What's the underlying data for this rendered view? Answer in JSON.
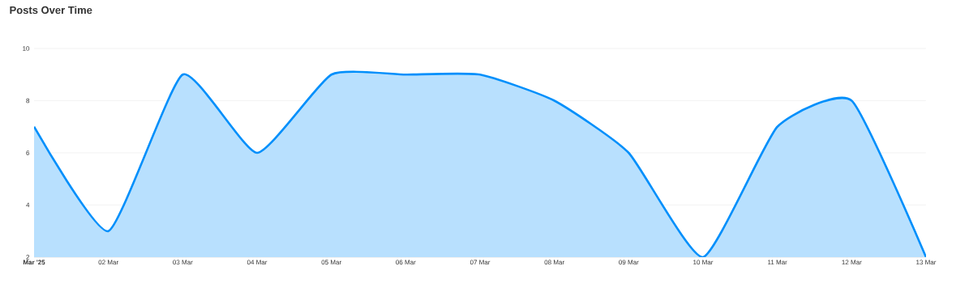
{
  "chart_data": {
    "type": "area",
    "title": "Posts Over Time",
    "x": [
      "2025-03-01",
      "2025-03-02",
      "2025-03-03",
      "2025-03-04",
      "2025-03-05",
      "2025-03-06",
      "2025-03-07",
      "2025-03-08",
      "2025-03-09",
      "2025-03-10",
      "2025-03-11",
      "2025-03-12",
      "2025-03-13"
    ],
    "series": [
      {
        "color": "#008ffb",
        "values": [
          7,
          3,
          9,
          6,
          9,
          9,
          9,
          8,
          6,
          2,
          7,
          8,
          2
        ]
      }
    ],
    "xlim": [
      "2025-03-01",
      "2025-03-13"
    ],
    "xticks": [
      {
        "value": "2025-03-01",
        "label": "**Mar '25**"
      },
      {
        "value": "2025-03-02",
        "label": "02 Mar"
      },
      {
        "value": "2025-03-03",
        "label": "03 Mar"
      },
      {
        "value": "2025-03-04",
        "label": "04 Mar"
      },
      {
        "value": "2025-03-05",
        "label": "05 Mar"
      },
      {
        "value": "2025-03-06",
        "label": "06 Mar"
      },
      {
        "value": "2025-03-07",
        "label": "07 Mar"
      },
      {
        "value": "2025-03-08",
        "label": "08 Mar"
      },
      {
        "value": "2025-03-09",
        "label": "09 Mar"
      },
      {
        "value": "2025-03-10",
        "label": "10 Mar"
      },
      {
        "value": "2025-03-11",
        "label": "11 Mar"
      },
      {
        "value": "2025-03-12",
        "label": "12 Mar"
      },
      {
        "value": "2025-03-13",
        "label": "13 Mar"
      }
    ],
    "ylim": [
      2,
      10
    ],
    "yticks": [
      2,
      4,
      6,
      8,
      10
    ],
    "grid": "y",
    "marker": "none",
    "line_style": "solid"
  }
}
